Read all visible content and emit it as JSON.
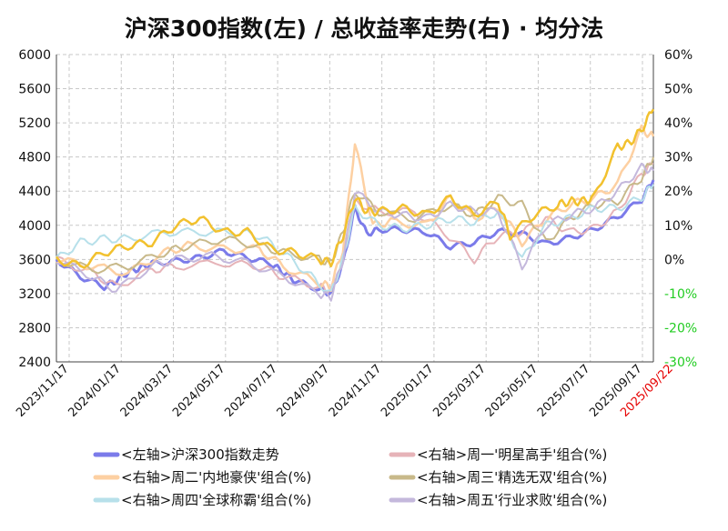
{
  "title": "沪深300指数(左)  /  总收益率走势(右) · 均分法",
  "colors": {
    "index": "#7b7bea",
    "mon": "#e6b3b8",
    "tue": "#fdd0a2",
    "wed": "#c8b98a",
    "thu": "#b7e0ea",
    "fri": "#c4b8dc",
    "wed_main": "#f2c12e"
  },
  "chart_data": {
    "type": "line",
    "title": "沪深300指数(左)  /  总收益率走势(右) · 均分法",
    "x_ticks": [
      "2023/11/17",
      "2024/01/17",
      "2024/03/17",
      "2024/05/17",
      "2024/07/17",
      "2024/09/17",
      "2024/11/17",
      "2025/01/17",
      "2025/03/17",
      "2025/05/17",
      "2025/07/17",
      "2025/09/17",
      "2025/09/22"
    ],
    "y_left": {
      "min": 2400,
      "max": 6000,
      "ticks": [
        2400,
        2800,
        3200,
        3600,
        4000,
        4400,
        4800,
        5200,
        5600,
        6000
      ]
    },
    "y_right": {
      "min": -30,
      "max": 60,
      "ticks": [
        "-30%",
        "-20%",
        "-10%",
        "0%",
        "10%",
        "20%",
        "30%",
        "40%",
        "50%",
        "60%"
      ]
    },
    "grid": true,
    "legend_position": "bottom",
    "series": [
      {
        "name": "<左轴>沪深300指数走势",
        "axis": "left",
        "key": "index",
        "x": [
          0,
          0.04,
          0.08,
          0.1,
          0.12,
          0.14,
          0.16,
          0.2,
          0.24,
          0.28,
          0.32,
          0.36,
          0.38,
          0.4,
          0.44,
          0.46,
          0.48,
          0.5,
          0.52,
          0.54,
          0.58,
          0.62,
          0.66,
          0.7,
          0.74,
          0.78,
          0.82,
          0.86,
          0.9,
          0.94,
          0.98,
          1.0
        ],
        "y": [
          3600,
          3400,
          3280,
          3350,
          3450,
          3500,
          3550,
          3580,
          3620,
          3700,
          3620,
          3550,
          3450,
          3350,
          3250,
          3200,
          3550,
          4200,
          3900,
          3950,
          3950,
          3920,
          3750,
          3800,
          3930,
          3900,
          3780,
          3850,
          3950,
          4100,
          4300,
          4530
        ]
      },
      {
        "name": "<右轴>周一'明星高手'组合(%)",
        "axis": "right",
        "key": "mon",
        "x": [
          0,
          0.06,
          0.1,
          0.16,
          0.2,
          0.28,
          0.34,
          0.38,
          0.44,
          0.46,
          0.48,
          0.5,
          0.54,
          0.6,
          0.65,
          0.7,
          0.74,
          0.78,
          0.82,
          0.86,
          0.9,
          0.94,
          0.98,
          1.0
        ],
        "y": [
          0,
          -4,
          -8,
          -3,
          -2,
          -1,
          -2,
          -5,
          -8,
          -9,
          0,
          17,
          14,
          14,
          8,
          0,
          7,
          8,
          12,
          8,
          9,
          14,
          25,
          28
        ]
      },
      {
        "name": "<右轴>周二'内地豪侠'组合(%)",
        "axis": "right",
        "key": "tue",
        "x": [
          0,
          0.06,
          0.12,
          0.18,
          0.22,
          0.28,
          0.34,
          0.38,
          0.44,
          0.46,
          0.48,
          0.5,
          0.53,
          0.56,
          0.62,
          0.66,
          0.7,
          0.74,
          0.78,
          0.82,
          0.86,
          0.9,
          0.94,
          0.98,
          1.0
        ],
        "y": [
          0,
          -2,
          -4,
          2,
          4,
          3,
          3,
          -2,
          -7,
          -8,
          3,
          34,
          10,
          11,
          10,
          18,
          12,
          15,
          5,
          12,
          16,
          18,
          22,
          38,
          36
        ]
      },
      {
        "name": "<右轴>周三'精选无双'组合(%)",
        "axis": "right",
        "key": "wed",
        "x": [
          0,
          0.06,
          0.12,
          0.18,
          0.22,
          0.28,
          0.34,
          0.38,
          0.44,
          0.46,
          0.48,
          0.5,
          0.54,
          0.6,
          0.66,
          0.7,
          0.74,
          0.78,
          0.82,
          0.86,
          0.9,
          0.94,
          0.98,
          1.0
        ],
        "y": [
          0,
          -3,
          -2,
          2,
          4,
          6,
          4,
          2,
          0,
          -1,
          8,
          20,
          14,
          12,
          16,
          13,
          18,
          16,
          5,
          12,
          16,
          17,
          24,
          30
        ]
      },
      {
        "name": "<右轴>周四'全球称霸'组合(%)",
        "axis": "right",
        "key": "thu",
        "x": [
          0,
          0.04,
          0.08,
          0.12,
          0.18,
          0.24,
          0.3,
          0.34,
          0.38,
          0.42,
          0.46,
          0.48,
          0.5,
          0.54,
          0.58,
          0.62,
          0.66,
          0.7,
          0.74,
          0.78,
          0.82,
          0.86,
          0.9,
          0.94,
          0.98,
          1.0
        ],
        "y": [
          0,
          5,
          6,
          6,
          8,
          8,
          8,
          7,
          2,
          -4,
          -10,
          0,
          15,
          10,
          9,
          10,
          12,
          11,
          14,
          0,
          10,
          12,
          15,
          15,
          18,
          22
        ]
      },
      {
        "name": "<右轴>周五'行业求败'组合(%)",
        "axis": "right",
        "key": "fri",
        "x": [
          0,
          0.06,
          0.1,
          0.16,
          0.2,
          0.26,
          0.32,
          0.38,
          0.44,
          0.46,
          0.48,
          0.5,
          0.54,
          0.58,
          0.62,
          0.66,
          0.7,
          0.74,
          0.78,
          0.82,
          0.86,
          0.9,
          0.94,
          0.98,
          1.0
        ],
        "y": [
          0,
          -5,
          -9,
          -2,
          0,
          1,
          -1,
          -5,
          -10,
          -11,
          0,
          20,
          14,
          13,
          12,
          16,
          14,
          14,
          -2,
          10,
          13,
          15,
          20,
          27,
          26
        ]
      },
      {
        "name": "",
        "axis": "right",
        "key": "wed_main",
        "x": [
          0,
          0.04,
          0.08,
          0.12,
          0.16,
          0.2,
          0.24,
          0.28,
          0.32,
          0.36,
          0.4,
          0.44,
          0.46,
          0.48,
          0.5,
          0.52,
          0.54,
          0.58,
          0.62,
          0.66,
          0.7,
          0.74,
          0.76,
          0.8,
          0.84,
          0.86,
          0.88,
          0.9,
          0.94,
          0.96,
          0.98,
          1.0
        ],
        "y": [
          0,
          -2,
          2,
          4,
          5,
          10,
          12,
          8,
          8,
          3,
          2,
          0,
          -1,
          7,
          18,
          14,
          14,
          15,
          13,
          18,
          13,
          17,
          7,
          13,
          16,
          17,
          17,
          18,
          33,
          34,
          38,
          44
        ]
      }
    ]
  },
  "legend": [
    {
      "label": "<左轴>沪深300指数走势",
      "key": "index"
    },
    {
      "label": "<右轴>周一'明星高手'组合(%)",
      "key": "mon"
    },
    {
      "label": "<右轴>周二'内地豪侠'组合(%)",
      "key": "tue"
    },
    {
      "label": "<右轴>周三'精选无双'组合(%)",
      "key": "wed"
    },
    {
      "label": "<右轴>周四'全球称霸'组合(%)",
      "key": "thu"
    },
    {
      "label": "<右轴>周五'行业求败'组合(%)",
      "key": "fri"
    }
  ]
}
